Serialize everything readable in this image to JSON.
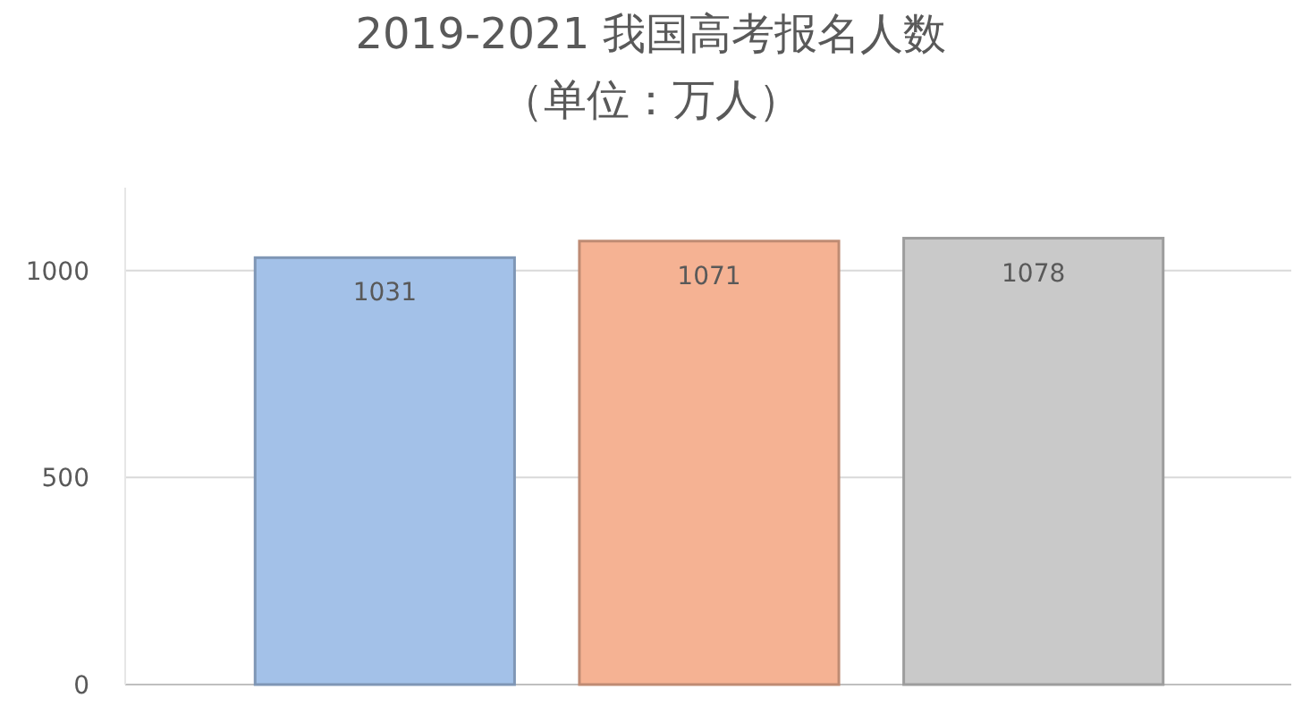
{
  "chart_data": {
    "type": "bar",
    "title": "2019-2021 我国高考报名人数",
    "subtitle": "（单位：万人）",
    "categories": [
      null,
      null,
      null
    ],
    "values": [
      1031,
      1071,
      1078
    ],
    "colors": [
      "#a3c1e8",
      "#f5b293",
      "#c9c9c9"
    ],
    "ylim": [
      0,
      1200
    ],
    "yticks": [
      0,
      500,
      1000
    ],
    "grid": "y",
    "data_labels": true
  }
}
